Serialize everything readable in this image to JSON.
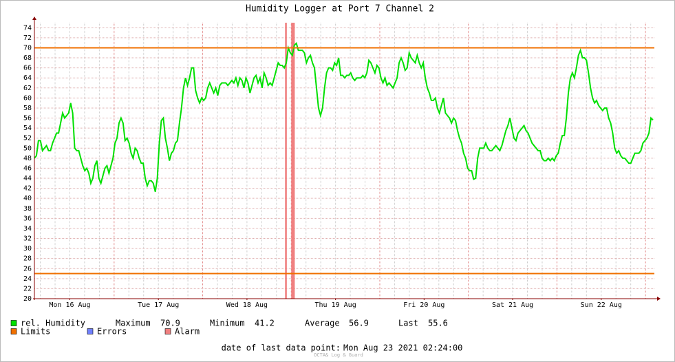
{
  "chart_data": {
    "type": "line",
    "title": "Humidity Logger at Port 7 Channel 2",
    "xlim": [
      16.1,
      23.1
    ],
    "xticks": [
      {
        "value": 16.5,
        "label": "Mon 16 Aug"
      },
      {
        "value": 17.5,
        "label": "Tue 17 Aug"
      },
      {
        "value": 18.5,
        "label": "Wed 18 Aug"
      },
      {
        "value": 19.5,
        "label": "Thu 19 Aug"
      },
      {
        "value": 20.5,
        "label": "Fri 20 Aug"
      },
      {
        "value": 21.5,
        "label": "Sat 21 Aug"
      },
      {
        "value": 22.5,
        "label": "Sun 22 Aug"
      }
    ],
    "ylim": [
      20,
      75
    ],
    "yticks": [
      20,
      22,
      24,
      26,
      28,
      30,
      32,
      34,
      36,
      38,
      40,
      42,
      44,
      46,
      48,
      50,
      52,
      54,
      56,
      58,
      60,
      62,
      64,
      66,
      68,
      70,
      72,
      74
    ],
    "grid": true,
    "series": [
      {
        "name": "rel. Humidity",
        "color": "#00e000",
        "values": [
          48,
          48.5,
          51.5,
          51.5,
          49.5,
          50,
          50.5,
          49.5,
          49.5,
          51,
          52,
          53,
          53,
          55,
          57,
          56,
          56.5,
          57,
          59,
          57,
          50,
          49.5,
          49.5,
          48,
          46.5,
          45.5,
          46,
          45,
          43,
          44,
          46.5,
          47.5,
          44,
          43,
          44.5,
          46,
          46.5,
          45,
          46.5,
          48,
          51,
          52,
          55,
          56,
          55,
          51.5,
          52,
          51,
          49,
          48,
          50,
          49.5,
          48,
          47,
          47,
          44,
          42.5,
          43.5,
          43.5,
          43,
          41.3,
          44,
          51,
          55.5,
          56,
          52,
          50,
          47.5,
          49,
          49.5,
          51,
          51.5,
          55,
          58,
          62,
          64,
          62.5,
          64,
          66,
          66,
          61.5,
          60,
          59,
          60,
          59.5,
          60,
          62,
          63,
          62,
          61,
          62,
          60.5,
          62.5,
          63,
          63,
          63,
          62.5,
          63,
          63.5,
          63,
          64,
          62.5,
          64,
          63.5,
          62,
          64,
          63,
          61,
          62.5,
          64,
          64.5,
          63,
          64,
          62,
          65,
          64,
          62.5,
          63,
          62.5,
          64,
          65.5,
          67,
          66.5,
          66.5,
          66,
          67,
          70,
          69,
          68.5,
          70.5,
          70.9,
          69.5,
          69.5,
          69.5,
          69,
          67,
          68,
          68.5,
          67,
          66,
          62,
          58,
          56.5,
          58,
          62,
          65,
          66,
          66,
          65.5,
          67,
          66.5,
          68,
          64.5,
          64.5,
          64,
          64.5,
          64.5,
          65,
          64,
          63.5,
          64,
          64,
          64,
          64.5,
          64,
          65,
          67.5,
          67,
          66,
          65,
          66.5,
          66,
          64,
          63,
          64,
          62.5,
          63,
          62.5,
          62,
          63,
          64,
          67,
          68,
          67,
          65.5,
          66,
          69,
          68,
          67.5,
          67,
          68.5,
          67,
          66,
          67,
          64,
          62,
          61,
          59.5,
          59.5,
          60,
          58,
          57,
          58.5,
          60,
          57,
          56.5,
          56,
          55,
          56,
          55.5,
          53.5,
          52,
          51,
          49,
          48,
          46,
          45.5,
          45.5,
          43.8,
          44,
          48,
          50,
          50,
          50,
          51,
          50,
          49.5,
          49.5,
          50,
          50.5,
          50,
          49.5,
          50.5,
          52,
          53.5,
          54.5,
          56,
          54,
          52,
          51.5,
          53,
          53.5,
          54,
          54.5,
          53.5,
          53,
          52,
          51,
          50.5,
          50,
          49.5,
          49.5,
          48,
          47.5,
          47.5,
          48,
          47.5,
          48,
          47.5,
          48.5,
          49,
          51,
          52.5,
          52.5,
          56,
          61,
          64,
          65,
          64,
          66,
          68.5,
          69.5,
          68,
          68,
          67.5,
          65,
          62,
          60,
          59,
          59.5,
          58.5,
          58,
          57.5,
          58,
          58,
          56,
          55,
          53,
          50,
          49,
          49.5,
          48.5,
          48,
          48,
          47.5,
          47,
          47,
          48,
          49,
          49,
          49,
          49.5,
          51,
          51.5,
          52,
          53,
          56,
          55.6
        ],
        "stats": [
          {
            "label": "Maximum",
            "value": 70.9
          },
          {
            "label": "Minimum",
            "value": 41.2
          },
          {
            "label": "Average",
            "value": 56.9
          },
          {
            "label": "Last",
            "value": 55.6
          }
        ]
      },
      {
        "name": "Limits",
        "color": "#f07000",
        "values": [
          70,
          25
        ]
      },
      {
        "name": "Errors",
        "color": "#7080ff",
        "values": []
      },
      {
        "name": "Alarm",
        "color": "#f08080",
        "spans": [
          [
            18.93,
            18.95
          ],
          [
            19.0,
            19.04
          ]
        ]
      }
    ],
    "footer": {
      "label": "date of last data point:",
      "value": "Mon Aug 23 2021 02:24:00"
    },
    "watermark": "OCTA& Log & Guard"
  }
}
